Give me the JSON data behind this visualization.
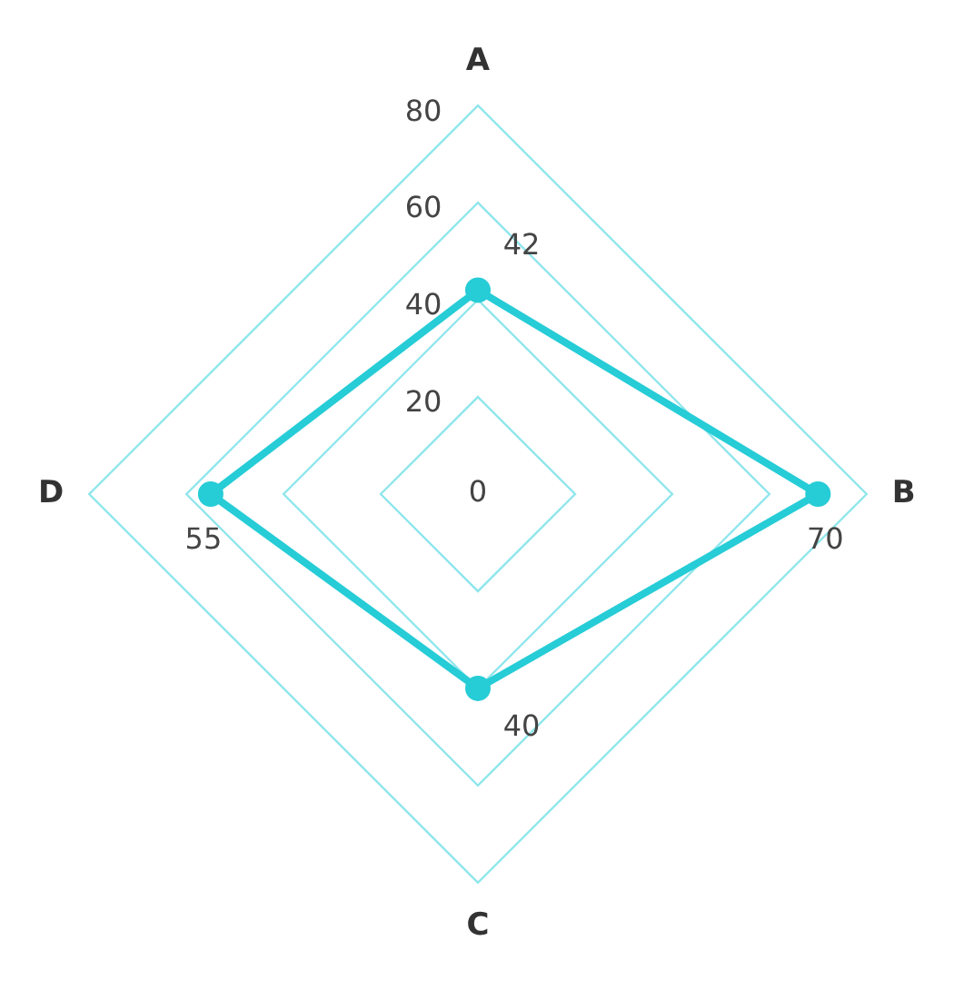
{
  "chart_data": {
    "type": "radar",
    "categories": [
      "A",
      "B",
      "C",
      "D"
    ],
    "series": [
      {
        "color": "#26ccd6",
        "values": [
          42,
          70,
          40,
          55
        ]
      }
    ],
    "ylim": [
      0,
      80
    ],
    "yticks": [
      0,
      20,
      40,
      60,
      80
    ],
    "grid": true,
    "marker": "circle",
    "data_labels": true,
    "legend": false
  }
}
